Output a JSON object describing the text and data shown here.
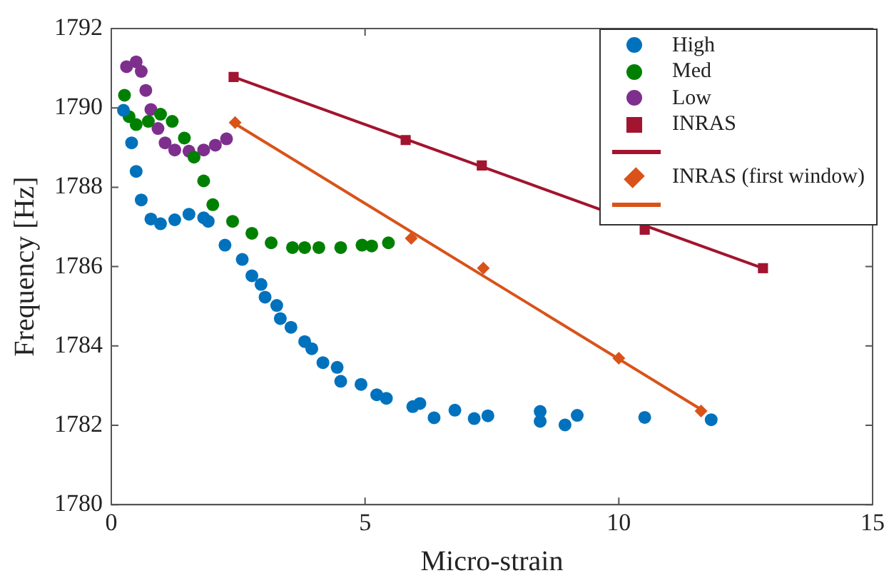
{
  "chart_data": {
    "type": "scatter",
    "xlabel": "Micro-strain",
    "ylabel": "Frequency [Hz]",
    "xlim": [
      0,
      15
    ],
    "ylim": [
      1780,
      1792
    ],
    "xticks": [
      0,
      5,
      10,
      15
    ],
    "yticks": [
      1780,
      1782,
      1784,
      1786,
      1788,
      1790,
      1792
    ],
    "grid": false,
    "legend": "top right",
    "series": [
      {
        "name": "High",
        "type": "scatter",
        "marker": "circle",
        "color": "#0072bd",
        "x": [
          0.24,
          0.4,
          0.49,
          0.59,
          0.78,
          0.97,
          1.25,
          1.53,
          1.82,
          1.91,
          2.24,
          2.58,
          2.77,
          2.95,
          3.03,
          3.26,
          3.33,
          3.54,
          3.81,
          3.95,
          4.17,
          4.45,
          4.52,
          4.92,
          5.23,
          5.42,
          5.94,
          6.08,
          6.36,
          6.77,
          7.15,
          7.42,
          8.45,
          8.45,
          8.94,
          9.18,
          10.51,
          11.82
        ],
        "values": [
          1789.94,
          1789.12,
          1788.4,
          1787.68,
          1787.2,
          1787.08,
          1787.18,
          1787.32,
          1787.23,
          1787.14,
          1786.54,
          1786.18,
          1785.77,
          1785.55,
          1785.23,
          1785.02,
          1784.69,
          1784.47,
          1784.11,
          1783.93,
          1783.58,
          1783.46,
          1783.11,
          1783.03,
          1782.77,
          1782.68,
          1782.47,
          1782.55,
          1782.19,
          1782.38,
          1782.17,
          1782.24,
          1782.35,
          1782.1,
          1782.01,
          1782.25,
          1782.2,
          1782.14
        ]
      },
      {
        "name": "Med",
        "type": "scatter",
        "marker": "circle",
        "color": "#008000",
        "x": [
          0.26,
          0.35,
          0.49,
          0.73,
          0.97,
          1.2,
          1.44,
          1.63,
          1.82,
          2.0,
          2.39,
          2.77,
          3.15,
          3.57,
          3.81,
          4.09,
          4.52,
          4.94,
          5.13,
          5.46
        ],
        "values": [
          1790.32,
          1789.78,
          1789.58,
          1789.66,
          1789.84,
          1789.66,
          1789.24,
          1788.76,
          1788.16,
          1787.56,
          1787.14,
          1786.84,
          1786.6,
          1786.48,
          1786.48,
          1786.48,
          1786.48,
          1786.54,
          1786.52,
          1786.6
        ]
      },
      {
        "name": "Low",
        "type": "scatter",
        "marker": "circle",
        "color": "#7e2f8e",
        "x": [
          0.3,
          0.49,
          0.59,
          0.68,
          0.78,
          0.92,
          1.06,
          1.25,
          1.53,
          1.82,
          2.05,
          2.27
        ],
        "values": [
          1791.04,
          1791.16,
          1790.92,
          1790.44,
          1789.96,
          1789.48,
          1789.12,
          1788.94,
          1788.91,
          1788.94,
          1789.06,
          1789.22
        ]
      },
      {
        "name": "INRAS",
        "type": "scatter",
        "marker": "square",
        "color": "#a2142f",
        "x": [
          2.41,
          5.8,
          7.3,
          10.51,
          12.84
        ],
        "values": [
          1790.78,
          1789.19,
          1788.55,
          1786.93,
          1785.96
        ]
      },
      {
        "type": "line",
        "marker": "none",
        "color": "#a2142f",
        "x": [
          2.41,
          12.84
        ],
        "values": [
          1790.78,
          1785.96
        ]
      },
      {
        "name": "INRAS (first window)",
        "type": "scatter",
        "marker": "diamond",
        "color": "#d95319",
        "x": [
          2.44,
          5.91,
          7.33,
          10.0,
          11.62
        ],
        "values": [
          1789.63,
          1786.71,
          1785.96,
          1783.69,
          1782.36
        ]
      },
      {
        "type": "line",
        "marker": "none",
        "color": "#d95319",
        "x": [
          2.44,
          11.62
        ],
        "values": [
          1789.6,
          1782.4
        ]
      }
    ]
  }
}
